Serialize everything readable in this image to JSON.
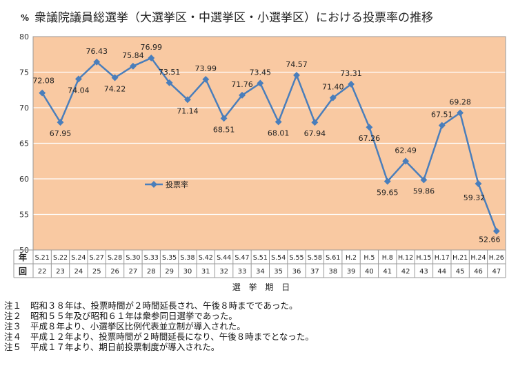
{
  "chart_data": {
    "type": "line",
    "title": "衆議院議員総選挙（大選挙区・中選挙区・小選挙区）における投票率の推移",
    "ylabel": "%",
    "xlabel": "選 挙 期 日",
    "row_label_year": "年",
    "row_label_round": "回",
    "ylim": [
      50,
      80
    ],
    "yticks": [
      50,
      55,
      60,
      65,
      70,
      75,
      80
    ],
    "legend": "投票率",
    "legend_position": "center-left",
    "colors": {
      "plot_bg": "#F9C9A2",
      "line": "#4A7EBB",
      "grid": "#FFFFFF"
    },
    "categories": [
      "S.21",
      "S.22",
      "S.24",
      "S.27",
      "S.28",
      "S.30",
      "S.33",
      "S.35",
      "S.38",
      "S.42",
      "S.44",
      "S.47",
      "S.51",
      "S.54",
      "S.55",
      "S.58",
      "S.61",
      "H.2",
      "H.5",
      "H.8",
      "H.12",
      "H.15",
      "H.17",
      "H.21",
      "H.24",
      "H.26"
    ],
    "rounds": [
      "22",
      "23",
      "24",
      "25",
      "26",
      "27",
      "28",
      "29",
      "30",
      "31",
      "32",
      "33",
      "34",
      "35",
      "36",
      "37",
      "38",
      "39",
      "40",
      "41",
      "42",
      "43",
      "44",
      "45",
      "46",
      "47"
    ],
    "series": [
      {
        "name": "投票率",
        "values": [
          72.08,
          67.95,
          74.04,
          76.43,
          74.22,
          75.84,
          76.99,
          73.51,
          71.14,
          73.99,
          68.51,
          71.76,
          73.45,
          68.01,
          74.57,
          67.94,
          71.4,
          73.31,
          67.26,
          59.65,
          62.49,
          59.86,
          67.51,
          69.28,
          59.32,
          52.66
        ]
      }
    ],
    "labels": [
      "72.08",
      "67.95",
      "74.04",
      "76.43",
      "74.22",
      "75.84",
      "76.99",
      "73.51",
      "71.14",
      "73.99",
      "68.51",
      "71.76",
      "73.45",
      "68.01",
      "74.57",
      "67.94",
      "71.40",
      "73.31",
      "67.26",
      "59.65",
      "62.49",
      "59.86",
      "67.51",
      "69.28",
      "59.32",
      "52.66"
    ]
  },
  "notes": [
    {
      "id": "注１",
      "text": "昭和３８年は、投票時間が２時間延長され、午後８時までであった。"
    },
    {
      "id": "注２",
      "text": "昭和５５年及び昭和６１年は衆参同日選挙であった。"
    },
    {
      "id": "注３",
      "text": "平成８年より、小選挙区比例代表並立制が導入された。"
    },
    {
      "id": "注４",
      "text": "平成１２年より、投票時間が２時間延長になり、午後８時までとなった。"
    },
    {
      "id": "注５",
      "text": "平成１７年より、期日前投票制度が導入された。"
    }
  ]
}
